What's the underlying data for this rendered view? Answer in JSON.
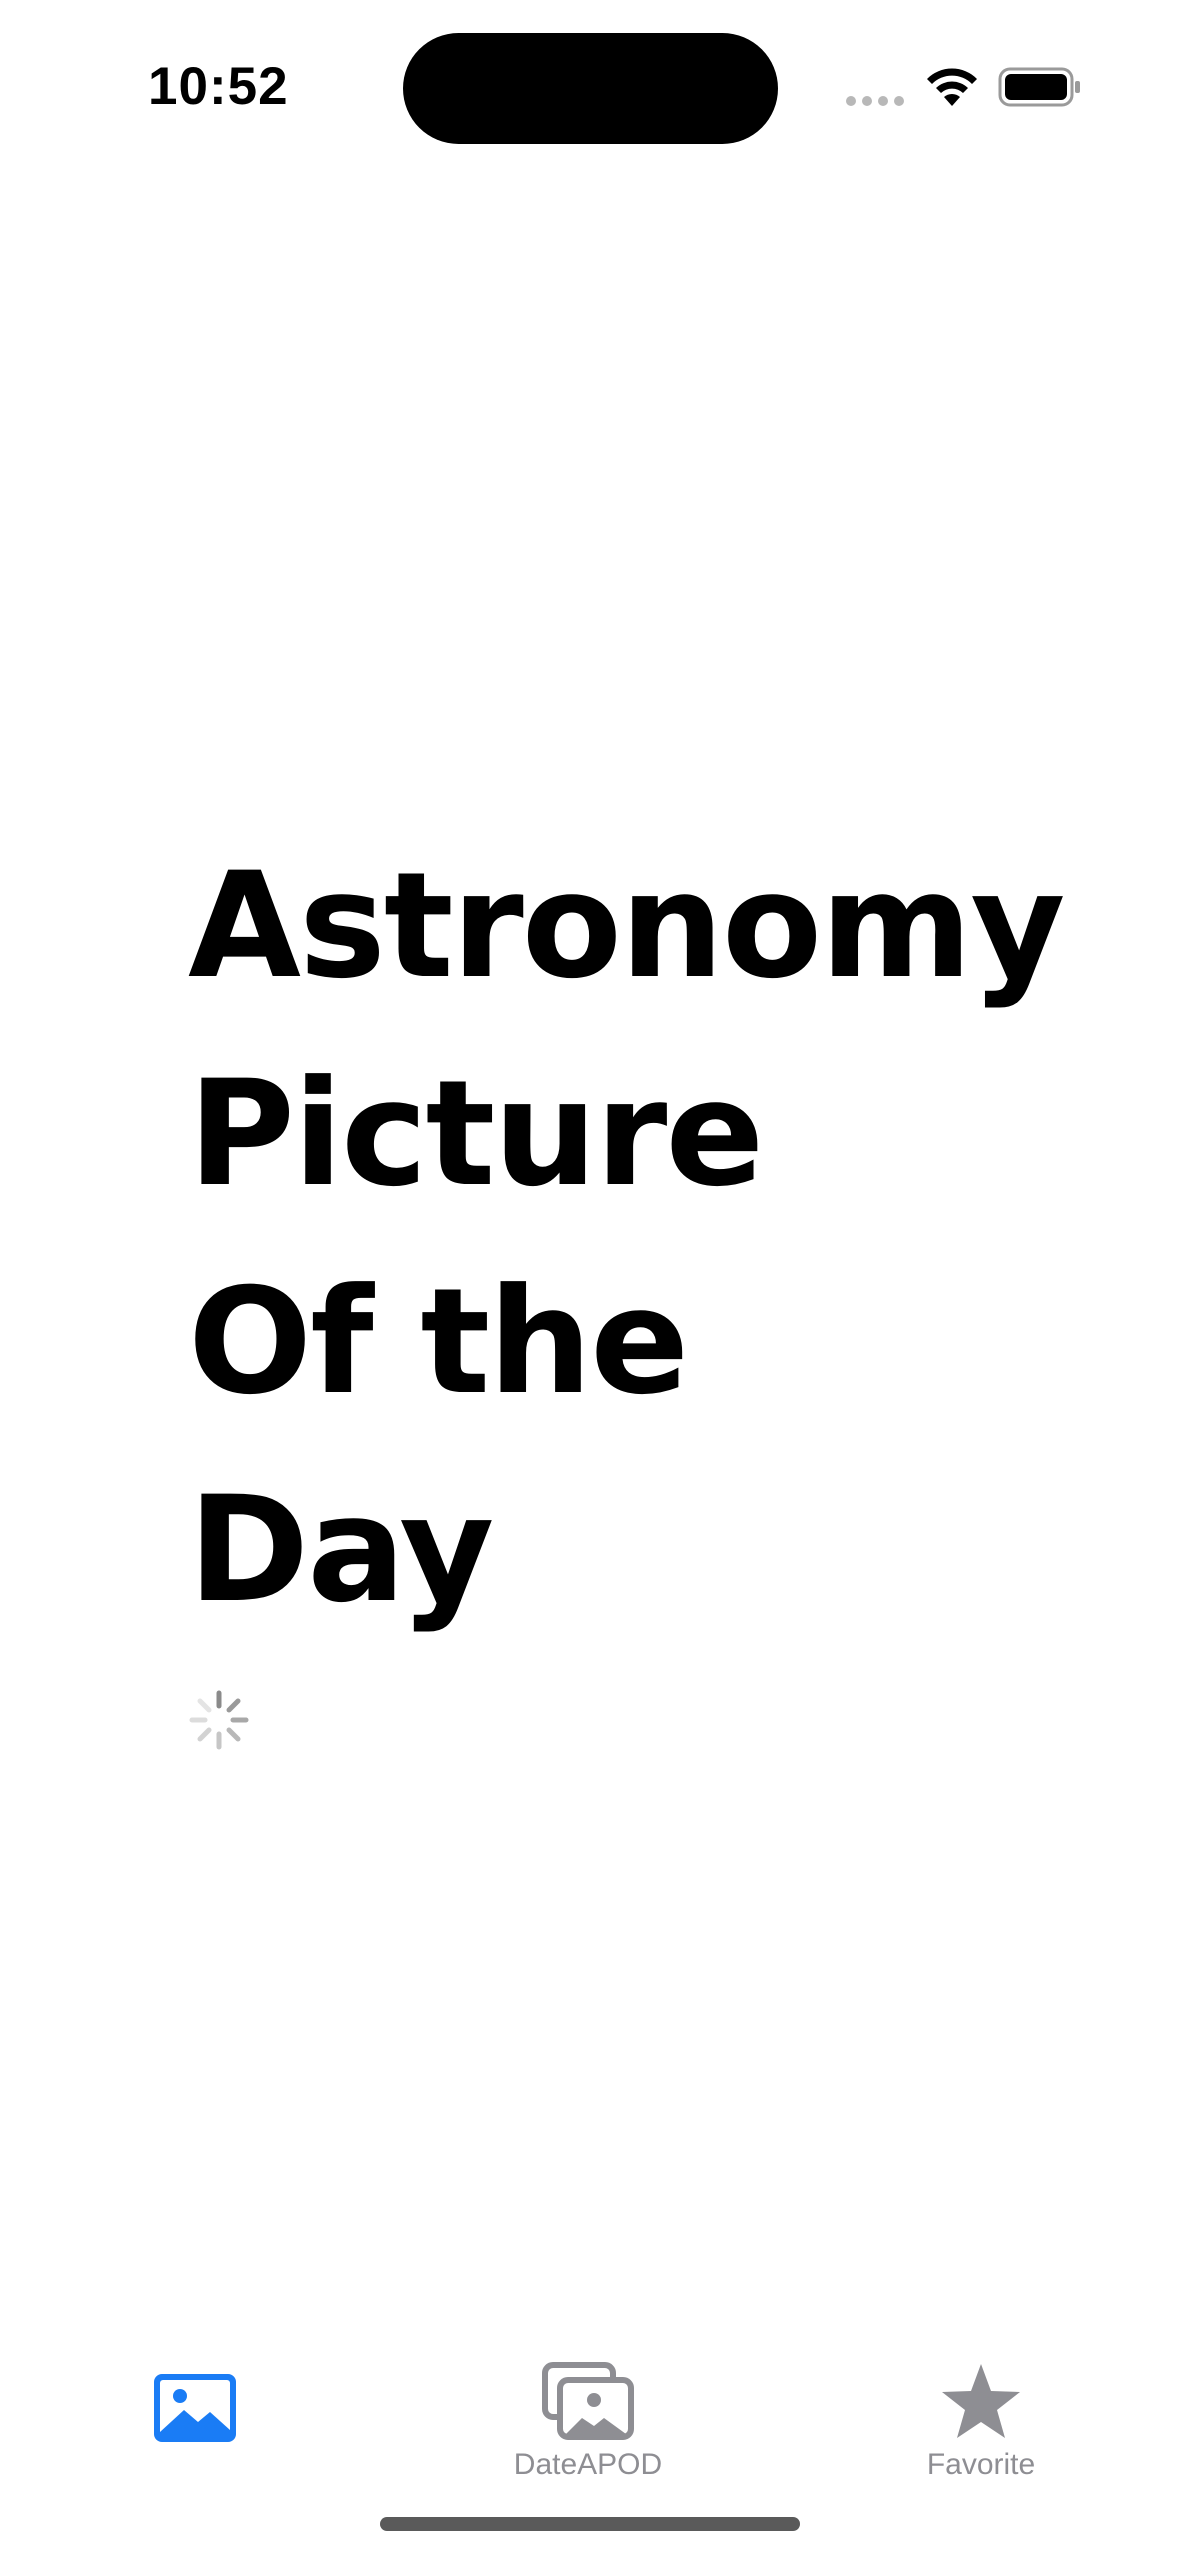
{
  "status_bar": {
    "time": "10:52"
  },
  "main": {
    "title_lines": [
      "Astronomy",
      "Picture",
      "Of the",
      "Day"
    ],
    "loading": true
  },
  "tab_bar": {
    "tabs": [
      {
        "label": "",
        "icon": "photo-icon",
        "selected": true
      },
      {
        "label": "DateAPOD",
        "icon": "photo-stack-icon",
        "selected": false
      },
      {
        "label": "Favorite",
        "icon": "star-icon",
        "selected": false
      }
    ]
  },
  "colors": {
    "accent": "#1a7cf5",
    "tab_inactive": "#8e8e93",
    "text": "#000000",
    "background": "#ffffff"
  }
}
